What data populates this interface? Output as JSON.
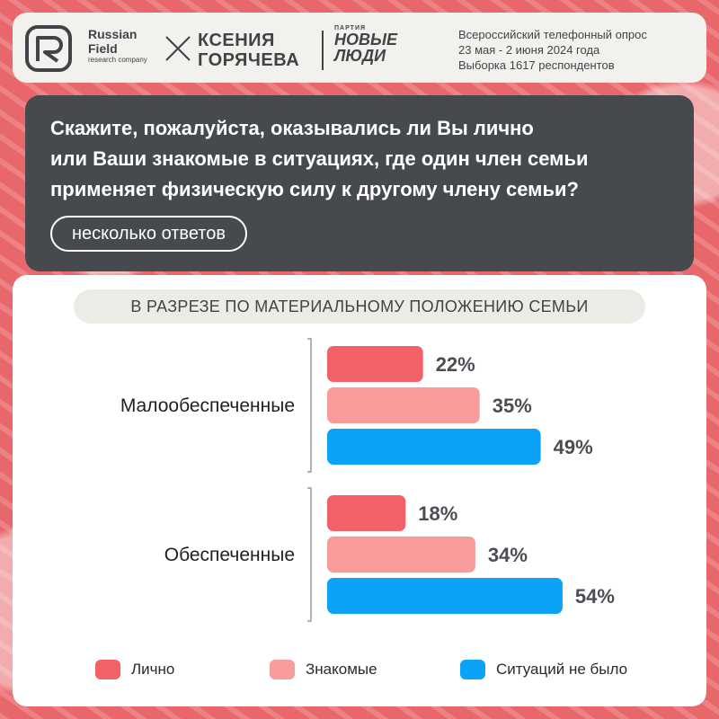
{
  "header": {
    "logo_brand_line1": "Russian",
    "logo_brand_line2": "Field",
    "logo_sub": "research company",
    "person_line1": "КСЕНИЯ",
    "person_line2": "ГОРЯЧЕВА",
    "party_small": "ПАРТИЯ",
    "party_line1": "НОВЫЕ",
    "party_line2": "ЛЮДИ",
    "survey_line1": "Всероссийский телефонный опрос",
    "survey_line2": "23 мая - 2 июня 2024 года",
    "survey_line3": "Выборка 1617 респондентов"
  },
  "question": {
    "line1": "Скажите, пожалуйста, оказывались ли Вы лично",
    "line2": "или Ваши знакомые в ситуациях, где один член семьи",
    "line3": "применяет физическую силу к другому члену семьи?",
    "pill": "несколько ответов"
  },
  "chart_subtitle": "В РАЗРЕЗЕ ПО МАТЕРИАЛЬНОМУ ПОЛОЖЕНИЮ СЕМЬИ",
  "colors": {
    "lichno": "#f26168",
    "znakomye": "#f79b9b",
    "ne_bylo": "#0aa3f5",
    "value_text": "#4a4d52"
  },
  "chart_data": {
    "type": "bar",
    "orientation": "horizontal",
    "categories": [
      "Малообеспеченные",
      "Обеспеченные"
    ],
    "series": [
      {
        "name": "Лично",
        "values": [
          22,
          18
        ],
        "labels": [
          "22%",
          "18%"
        ]
      },
      {
        "name": "Знакомые",
        "values": [
          35,
          34
        ],
        "labels": [
          "35%",
          "34%"
        ]
      },
      {
        "name": "Ситуаций не было",
        "values": [
          49,
          54
        ],
        "labels": [
          "49%",
          "54%"
        ]
      }
    ],
    "unit": "%",
    "legend_position": "bottom"
  }
}
